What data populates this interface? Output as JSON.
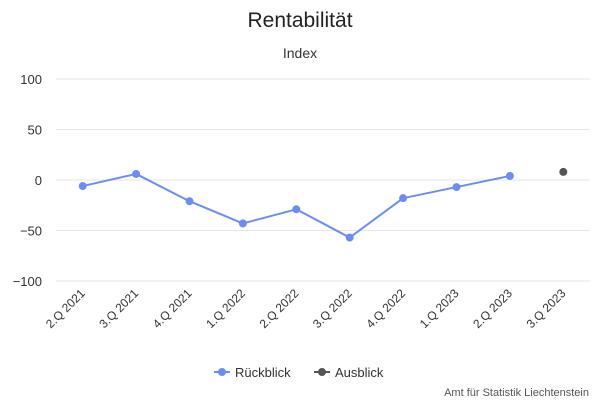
{
  "chart_data": {
    "type": "line",
    "title": "Rentabilität",
    "subtitle": "Index",
    "xlabel": "",
    "ylabel": "",
    "categories": [
      "2.Q 2021",
      "3.Q 2021",
      "4.Q 2021",
      "1.Q 2022",
      "2.Q 2022",
      "3.Q 2022",
      "4.Q 2022",
      "1.Q 2023",
      "2.Q 2023",
      "3.Q 2023"
    ],
    "ylim": [
      -100,
      100
    ],
    "yticks": [
      100,
      50,
      0,
      -50,
      -100
    ],
    "yticklabels": [
      "100",
      "50",
      "0",
      "−50",
      "−100"
    ],
    "grid": true,
    "legend_position": "bottom-center",
    "series": [
      {
        "name": "Rückblick",
        "color": "#6b8ef5",
        "values": [
          -6,
          6,
          -21,
          -43,
          -29,
          -57,
          -18,
          -7,
          4,
          null
        ]
      },
      {
        "name": "Ausblick",
        "color": "#555555",
        "values": [
          null,
          null,
          null,
          null,
          null,
          null,
          null,
          null,
          null,
          8
        ]
      }
    ],
    "credit": "Amt für Statistik Liechtenstein"
  }
}
